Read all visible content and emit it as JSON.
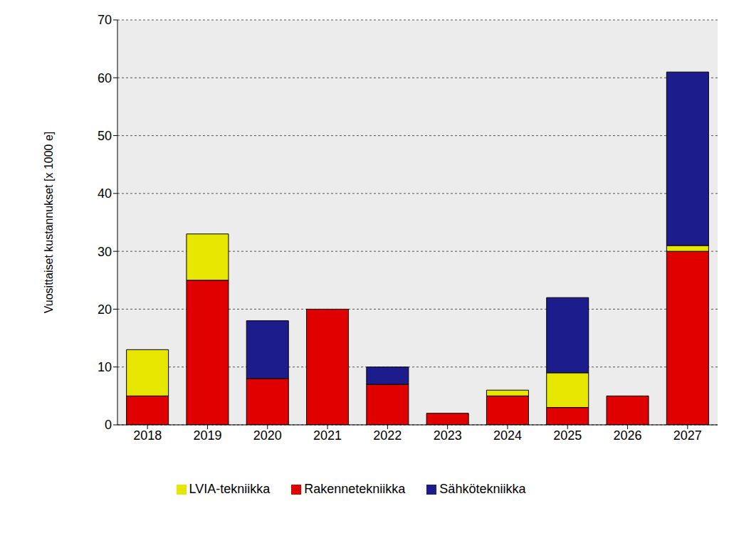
{
  "chart_data": {
    "type": "bar",
    "ylabel": "Vuosittaiset kustannukset [x 1000 e]",
    "categories": [
      "2018",
      "2019",
      "2020",
      "2021",
      "2022",
      "2023",
      "2024",
      "2025",
      "2026",
      "2027"
    ],
    "series": [
      {
        "name": "Rakennetekniikka",
        "color": "#e00000",
        "values": [
          5,
          25,
          8,
          20,
          7,
          2,
          5,
          3,
          5,
          30
        ]
      },
      {
        "name": "LVIA-tekniikka",
        "color": "#e6e600",
        "values": [
          8,
          8,
          0,
          0,
          0,
          0,
          1,
          6,
          0,
          1
        ]
      },
      {
        "name": "Sähkötekniikka",
        "color": "#1c1c8c",
        "values": [
          0,
          0,
          10,
          0,
          3,
          0,
          0,
          13,
          0,
          30
        ]
      }
    ],
    "stacked": true,
    "ylim": [
      0,
      70
    ],
    "yticks": [
      0,
      10,
      20,
      30,
      40,
      50,
      60,
      70
    ],
    "grid": true,
    "legend": "bottom"
  }
}
